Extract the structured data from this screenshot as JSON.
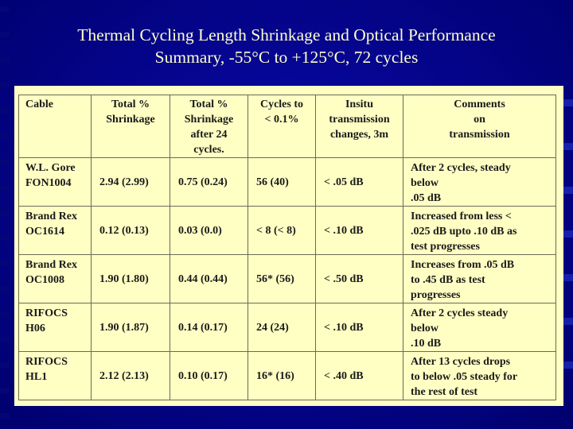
{
  "slide": {
    "title_line1": "Thermal Cycling Length Shrinkage and Optical Performance",
    "title_line2": "Summary, -55°C to +125°C, 72 cycles"
  },
  "table": {
    "headers": [
      [
        "Cable"
      ],
      [
        "Total %",
        "Shrinkage"
      ],
      [
        "Total %",
        "Shrinkage",
        "after 24",
        "cycles."
      ],
      [
        "Cycles to",
        "< 0.1%"
      ],
      [
        "Insitu",
        "transmission",
        "changes, 3m"
      ],
      [
        "Comments",
        "on",
        "transmission"
      ]
    ],
    "rows": [
      {
        "cable": [
          "W.L. Gore",
          "FON1004"
        ],
        "total": "2.94 (2.99)",
        "after24": "0.75 (0.24)",
        "cycles": "56 (40)",
        "insitu": "< .05 dB",
        "comment": [
          "After 2 cycles, steady",
          "below",
          " .05 dB"
        ]
      },
      {
        "cable": [
          "Brand Rex",
          "OC1614"
        ],
        "total": "0.12 (0.13)",
        "after24": "0.03 (0.0)",
        "cycles": "< 8 (< 8)",
        "insitu": "< .10 dB",
        "comment": [
          "Increased from less <",
          ".025 dB upto .10 dB as",
          "test progresses"
        ]
      },
      {
        "cable": [
          "Brand Rex",
          "OC1008"
        ],
        "total": "1.90 (1.80)",
        "after24": "0.44 (0.44)",
        "cycles": "56* (56)",
        "insitu": "< .50 dB",
        "comment": [
          "Increases from .05 dB",
          "to .45 dB as test",
          "progresses"
        ]
      },
      {
        "cable": [
          "RIFOCS",
          "H06"
        ],
        "total": "1.90 (1.87)",
        "after24": "0.14 (0.17)",
        "cycles": "24 (24)",
        "insitu": "< .10 dB",
        "comment": [
          "After 2 cycles steady",
          "below",
          " .10 dB"
        ]
      },
      {
        "cable": [
          "RIFOCS",
          "HL1"
        ],
        "total": "2.12 (2.13)",
        "after24": "0.10 (0.17)",
        "cycles": "16* (16)",
        "insitu": "< .40 dB",
        "comment": [
          "After 13 cycles drops",
          "to below .05 steady for",
          "the rest of test"
        ]
      }
    ]
  }
}
